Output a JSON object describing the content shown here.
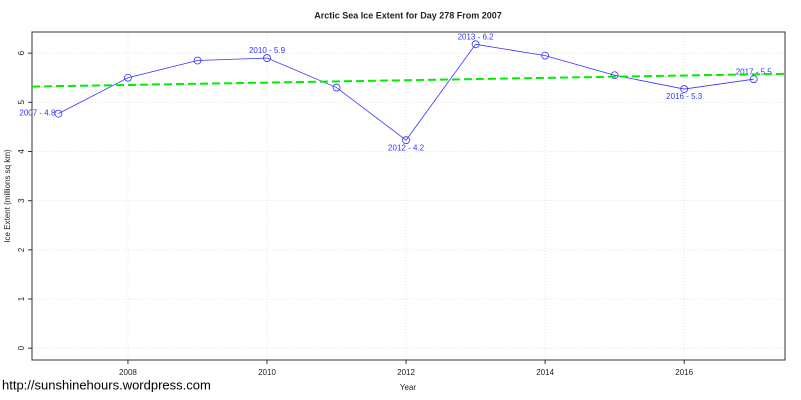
{
  "chart_data": {
    "type": "line",
    "title": "Arctic Sea Ice Extent for Day 278 From 2007",
    "x_label": "Year",
    "y_label": "Ice Extent (millions sq km)",
    "x": [
      2007,
      2008,
      2009,
      2010,
      2011,
      2012,
      2013,
      2014,
      2015,
      2016,
      2017
    ],
    "series": [
      {
        "color": "#3333ff",
        "values": [
          4.77,
          5.5,
          5.85,
          5.9,
          5.3,
          4.23,
          6.18,
          5.95,
          5.55,
          5.27,
          5.47
        ],
        "value_labels": [
          "2007 - 4.8",
          null,
          null,
          "2010 - 5.9",
          null,
          "2012 - 4.2",
          "2013 - 6.2",
          null,
          null,
          "2016 - 5.3",
          "2017 - 5.5"
        ]
      }
    ],
    "trend": {
      "color": "#00ee00",
      "x": [
        2006.62,
        2017.45
      ],
      "values": [
        5.32,
        5.58
      ]
    },
    "xlim": [
      2006.62,
      2017.45
    ],
    "xticks": [
      2008,
      2010,
      2012,
      2014,
      2016
    ],
    "ylim": [
      -0.24,
      6.43
    ],
    "yticks": [
      0,
      1,
      2,
      3,
      4,
      5,
      6
    ],
    "grid": true,
    "footer": "http://sunshinehours.wordpress.com"
  }
}
